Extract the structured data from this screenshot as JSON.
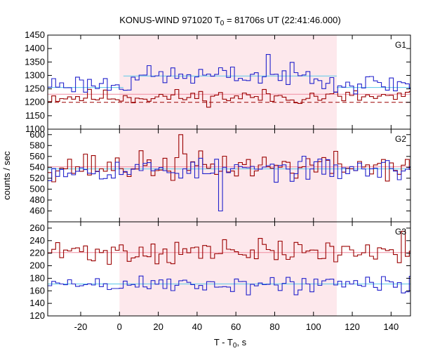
{
  "chart_data": {
    "type": "line",
    "title": "KONUS-WIND 971020 T₀ = 81706s UT (22:41:46.000)",
    "title_parts": {
      "prefix": "KONUS-WIND 971020 T",
      "sub": "0",
      "suffix": " = 81706s UT (22:41:46.000)"
    },
    "xlabel": "T - T₀, s",
    "xlabel_parts": {
      "prefix": "T - T",
      "sub": "0",
      "suffix": ", s"
    },
    "ylabel": "counts / sec",
    "xlim": [
      -37,
      150
    ],
    "xticks": [
      -20,
      0,
      20,
      40,
      60,
      80,
      100,
      120,
      140
    ],
    "highlight": {
      "start": 0,
      "end": 112,
      "color": "#fde8ec"
    },
    "colors": {
      "darkred": "#9b0000",
      "blue": "#2222cc",
      "cyan": "#58c8e8",
      "pink": "#f08ca0",
      "frame": "#000000"
    },
    "bin_width": 2.048,
    "panels": [
      {
        "name": "G1",
        "ylim": [
          1100,
          1450
        ],
        "yticks": [
          1100,
          1150,
          1200,
          1250,
          1300,
          1350,
          1400,
          1450
        ],
        "series": [
          {
            "color": "darkred",
            "mean": 1220,
            "amp": 20,
            "seed": 11,
            "spikes": []
          },
          {
            "color": "blue",
            "mean": 1268,
            "amp": 26,
            "seed": 23,
            "rise": {
              "start": 4,
              "end": 110,
              "level": 1298
            },
            "spikes": [
              [
                76,
                1378
              ]
            ]
          }
        ],
        "baselines": [
          {
            "color": "cyan",
            "value": 1255,
            "dash": false,
            "from": -37,
            "to": 2
          },
          {
            "color": "cyan",
            "value": 1298,
            "dash": false,
            "from": 2,
            "to": 112
          },
          {
            "color": "cyan",
            "value": 1255,
            "dash": false,
            "from": 112,
            "to": 150
          },
          {
            "color": "darkred",
            "value": 1200,
            "dash": true,
            "from": -37,
            "to": 150
          },
          {
            "color": "pink",
            "value": 1230,
            "dash": false,
            "from": -37,
            "to": 150
          }
        ]
      },
      {
        "name": "G2",
        "ylim": [
          440,
          610
        ],
        "yticks": [
          460,
          480,
          500,
          520,
          540,
          560,
          580,
          600
        ],
        "series": [
          {
            "color": "darkred",
            "mean": 542,
            "amp": 18,
            "seed": 37,
            "spikes": [
              [
                32,
                600
              ]
            ]
          },
          {
            "color": "blue",
            "mean": 536,
            "amp": 14,
            "seed": 53,
            "spikes": [
              [
                53,
                460
              ]
            ]
          }
        ],
        "baselines": [
          {
            "color": "cyan",
            "value": 537,
            "dash": false,
            "from": -37,
            "to": 150
          },
          {
            "color": "pink",
            "value": 541,
            "dash": false,
            "from": -37,
            "to": 150
          }
        ]
      },
      {
        "name": "G3",
        "ylim": [
          120,
          270
        ],
        "yticks": [
          120,
          140,
          160,
          180,
          200,
          220,
          240,
          260
        ],
        "series": [
          {
            "color": "darkred",
            "mean": 222,
            "amp": 14,
            "seed": 71,
            "spikes": [
              [
                147,
                255
              ]
            ]
          },
          {
            "color": "blue",
            "mean": 170,
            "amp": 11,
            "seed": 89,
            "spikes": []
          }
        ],
        "baselines": [
          {
            "color": "cyan",
            "value": 171,
            "dash": false,
            "from": -37,
            "to": 150
          },
          {
            "color": "pink",
            "value": 221,
            "dash": false,
            "from": -37,
            "to": 150
          }
        ]
      }
    ]
  }
}
